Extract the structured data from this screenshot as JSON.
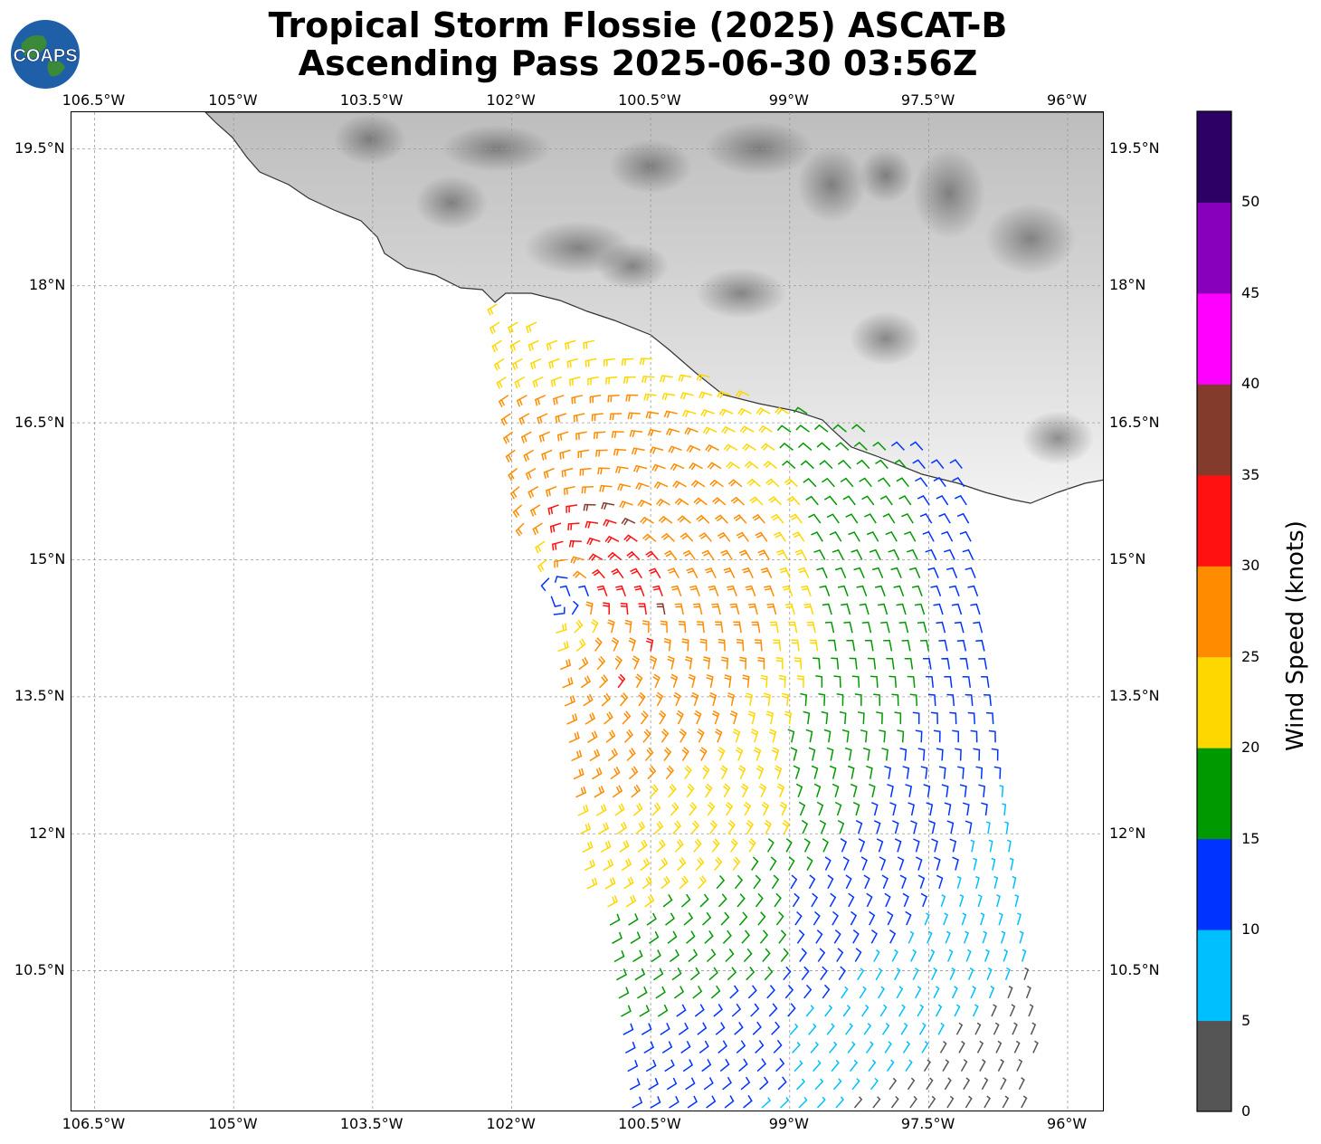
{
  "title": {
    "line1": "Tropical Storm Flossie (2025) ASCAT-B",
    "line2": "Ascending Pass 2025-06-30 03:56Z"
  },
  "logo": {
    "text": "COAPS",
    "icon": "globe-icon"
  },
  "map": {
    "lon_range": [
      -106.75,
      -95.6
    ],
    "lat_range": [
      8.95,
      19.9
    ],
    "lon_ticks": [
      "106.5°W",
      "105°W",
      "103.5°W",
      "102°W",
      "100.5°W",
      "99°W",
      "97.5°W",
      "96°W"
    ],
    "lon_tick_values": [
      -106.5,
      -105,
      -103.5,
      -102,
      -100.5,
      -99,
      -97.5,
      -96
    ],
    "lat_ticks": [
      "19.5°N",
      "18°N",
      "16.5°N",
      "15°N",
      "13.5°N",
      "12°N",
      "10.5°N"
    ],
    "lat_tick_values": [
      19.5,
      18,
      16.5,
      15,
      13.5,
      12,
      10.5
    ],
    "storm_center": {
      "lon": -101.5,
      "lat": 14.6
    },
    "swath": {
      "lon_min": -102.3,
      "lon_max": -96.2,
      "lat_min": 9.0,
      "lat_max": 17.9
    }
  },
  "colorbar": {
    "label": "Wind Speed (knots)",
    "ticks": [
      "0",
      "5",
      "10",
      "15",
      "20",
      "25",
      "30",
      "35",
      "40",
      "45",
      "50"
    ],
    "bins": [
      {
        "min": 0,
        "max": 5,
        "color": "#555555"
      },
      {
        "min": 5,
        "max": 10,
        "color": "#00bfff"
      },
      {
        "min": 10,
        "max": 15,
        "color": "#0033ff"
      },
      {
        "min": 15,
        "max": 20,
        "color": "#009900"
      },
      {
        "min": 20,
        "max": 25,
        "color": "#ffd700"
      },
      {
        "min": 25,
        "max": 30,
        "color": "#ff8c00"
      },
      {
        "min": 30,
        "max": 35,
        "color": "#ff1111"
      },
      {
        "min": 35,
        "max": 40,
        "color": "#833c2b"
      },
      {
        "min": 40,
        "max": 45,
        "color": "#ff00ff"
      },
      {
        "min": 45,
        "max": 50,
        "color": "#8800bb"
      },
      {
        "min": 50,
        "max": 55,
        "color": "#2d0066"
      }
    ]
  }
}
